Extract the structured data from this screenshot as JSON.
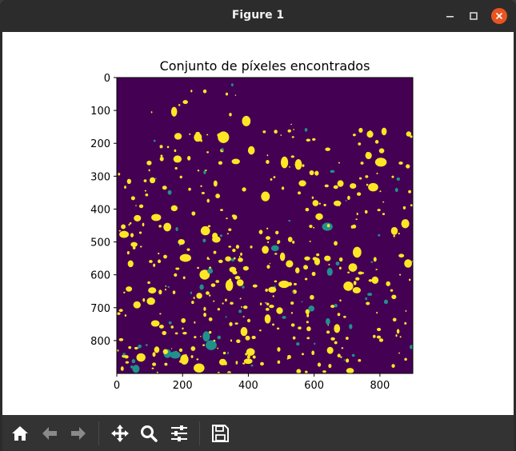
{
  "window": {
    "title": "Figure 1",
    "close_color": "#e95420"
  },
  "figure": {
    "title": "Conjunto de píxeles encontrados",
    "background": "#440154",
    "highlight": "#fde725",
    "mid": "#21918c",
    "icons": {
      "home": "home-icon",
      "back": "arrow-left-icon",
      "forward": "arrow-right-icon",
      "pan": "move-icon",
      "zoom": "magnifier-icon",
      "configure": "sliders-icon",
      "save": "floppy-disk-icon"
    }
  },
  "chart_data": {
    "type": "heatmap",
    "title": "Conjunto de píxeles encontrados",
    "xlabel": "",
    "ylabel": "",
    "xlim": [
      0,
      900
    ],
    "ylim": [
      900,
      0
    ],
    "x_ticks": [
      "0",
      "200",
      "400",
      "600",
      "800"
    ],
    "y_ticks": [
      "0",
      "100",
      "200",
      "300",
      "400",
      "500",
      "600",
      "700",
      "800"
    ],
    "colormap": "viridis",
    "values_description": "binary mask, 0 = background, 1 = found pixels"
  }
}
